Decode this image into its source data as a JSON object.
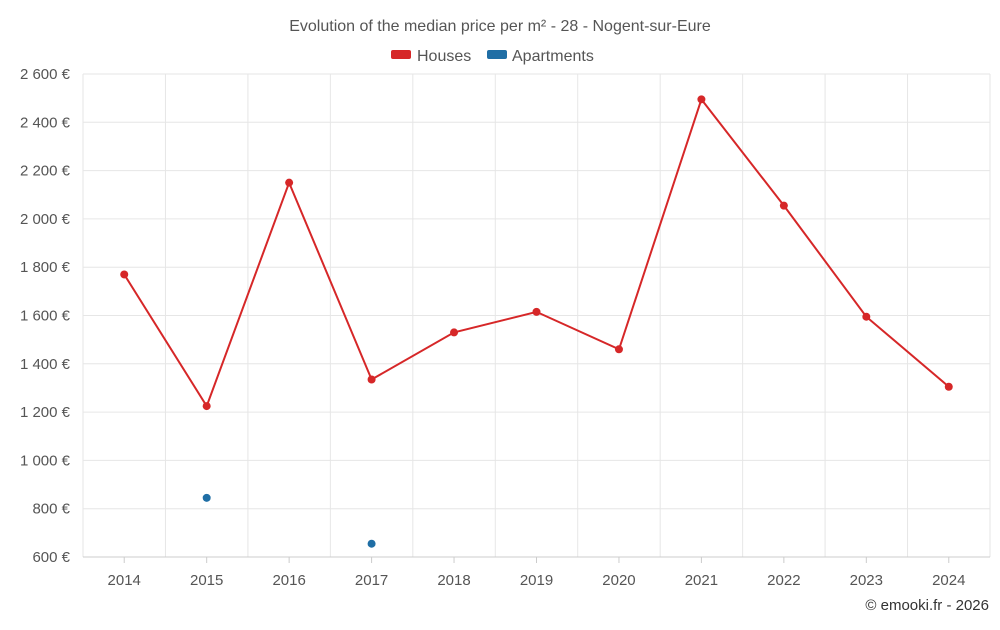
{
  "chart_data": {
    "type": "line",
    "title": "Evolution of the median price per m² - 28 - Nogent-sur-Eure",
    "categories": [
      "2014",
      "2015",
      "2016",
      "2017",
      "2018",
      "2019",
      "2020",
      "2021",
      "2022",
      "2023",
      "2024"
    ],
    "series": [
      {
        "name": "Houses",
        "color": "#d62728",
        "values": [
          1770,
          1225,
          2150,
          1335,
          1530,
          1615,
          1460,
          2495,
          2055,
          1595,
          1305
        ]
      },
      {
        "name": "Apartments",
        "color": "#1f6ea5",
        "values": [
          null,
          845,
          null,
          655,
          null,
          null,
          null,
          null,
          null,
          null,
          null
        ]
      }
    ],
    "ylim": [
      600,
      2600
    ],
    "y_ticks": [
      600,
      800,
      1000,
      1200,
      1400,
      1600,
      1800,
      2000,
      2200,
      2400,
      2600
    ],
    "y_tick_labels": [
      "600 €",
      "800 €",
      "1 000 €",
      "1 200 €",
      "1 400 €",
      "1 600 €",
      "1 800 €",
      "2 000 €",
      "2 200 €",
      "2 400 €",
      "2 600 €"
    ],
    "grid": true,
    "legend_position": "top-center"
  },
  "credit": "© emooki.fr - 2026"
}
